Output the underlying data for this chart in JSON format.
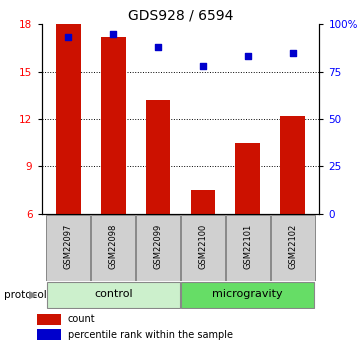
{
  "title": "GDS928 / 6594",
  "samples": [
    "GSM22097",
    "GSM22098",
    "GSM22099",
    "GSM22100",
    "GSM22101",
    "GSM22102"
  ],
  "counts": [
    18.0,
    17.2,
    13.2,
    7.5,
    10.5,
    12.2
  ],
  "percentiles": [
    93,
    95,
    88,
    78,
    83,
    85
  ],
  "ylim_left": [
    6,
    18
  ],
  "ylim_right": [
    0,
    100
  ],
  "yticks_left": [
    6,
    9,
    12,
    15,
    18
  ],
  "yticks_right": [
    0,
    25,
    50,
    75,
    100
  ],
  "yticklabels_right": [
    "0",
    "25",
    "50",
    "75",
    "100%"
  ],
  "bar_color": "#cc1100",
  "dot_color": "#0000cc",
  "bar_width": 0.55,
  "protocol_groups": [
    {
      "label": "control",
      "indices": [
        0,
        1,
        2
      ],
      "color": "#ccf0cc"
    },
    {
      "label": "microgravity",
      "indices": [
        3,
        4,
        5
      ],
      "color": "#66dd66"
    }
  ],
  "protocol_label": "protocol",
  "legend_items": [
    {
      "label": "count",
      "color": "#cc1100"
    },
    {
      "label": "percentile rank within the sample",
      "color": "#0000cc"
    }
  ],
  "title_fontsize": 10,
  "tick_fontsize": 7.5,
  "sample_fontsize": 6,
  "proto_fontsize": 8,
  "legend_fontsize": 7
}
